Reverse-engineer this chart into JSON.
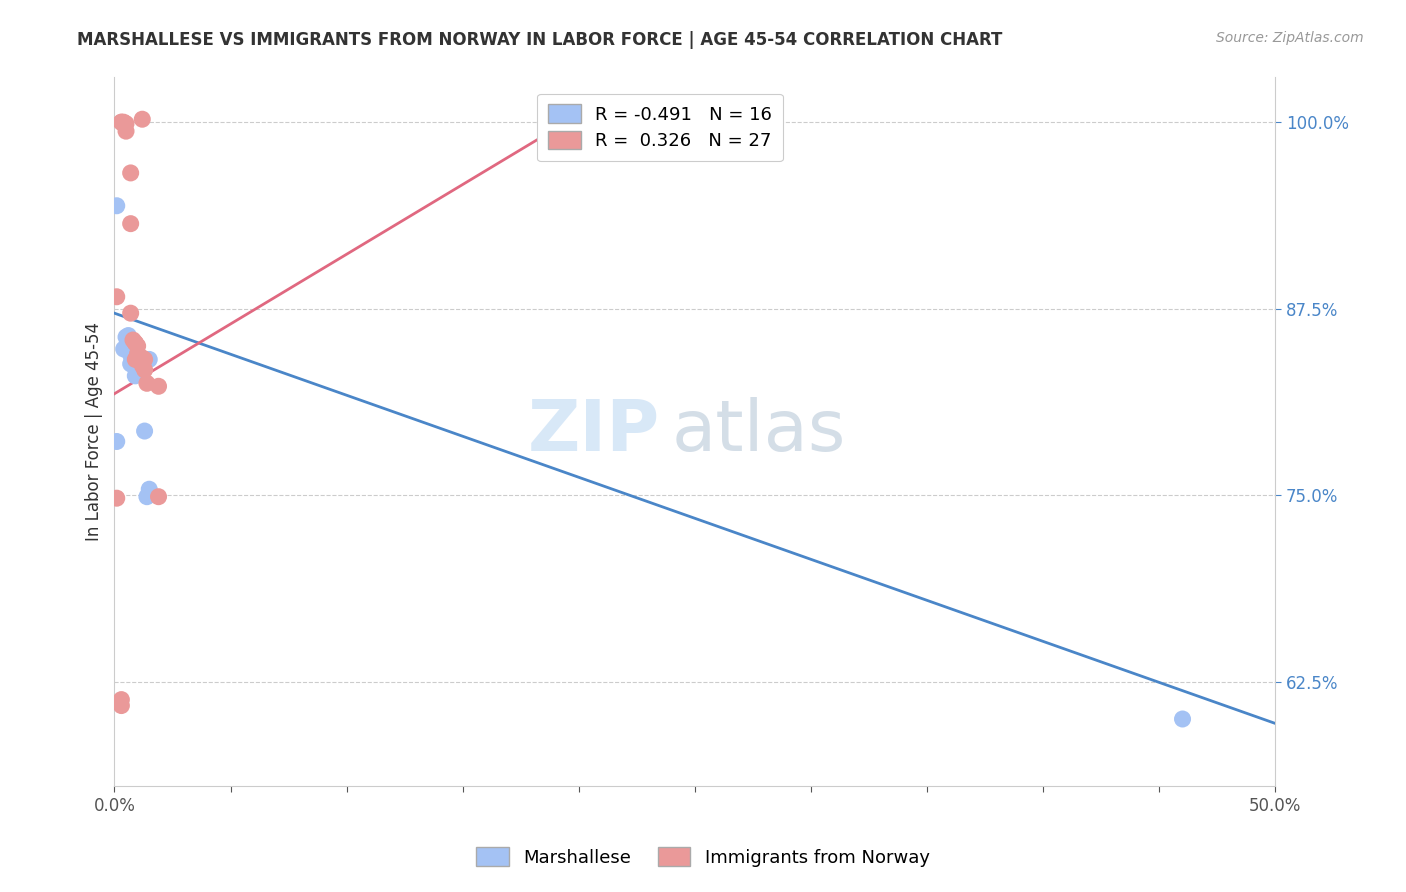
{
  "title": "MARSHALLESE VS IMMIGRANTS FROM NORWAY IN LABOR FORCE | AGE 45-54 CORRELATION CHART",
  "source": "Source: ZipAtlas.com",
  "ylabel": "In Labor Force | Age 45-54",
  "xlim": [
    0.0,
    0.5
  ],
  "ylim": [
    0.555,
    1.03
  ],
  "xtick_positions": [
    0.0,
    0.05,
    0.1,
    0.15,
    0.2,
    0.25,
    0.3,
    0.35,
    0.4,
    0.45,
    0.5
  ],
  "xticklabels": [
    "0.0%",
    "",
    "",
    "",
    "",
    "",
    "",
    "",
    "",
    "",
    "50.0%"
  ],
  "ytick_positions": [
    0.625,
    0.75,
    0.875,
    1.0
  ],
  "ytick_labels": [
    "62.5%",
    "75.0%",
    "87.5%",
    "100.0%"
  ],
  "blue_color": "#a4c2f4",
  "pink_color": "#ea9999",
  "blue_line_color": "#4a86c8",
  "pink_line_color": "#e06880",
  "R_blue": -0.491,
  "N_blue": 16,
  "R_pink": 0.326,
  "N_pink": 27,
  "legend_label_blue": "Marshallese",
  "legend_label_pink": "Immigrants from Norway",
  "watermark_zip": "ZIP",
  "watermark_atlas": "atlas",
  "blue_line": [
    [
      0.0,
      0.872
    ],
    [
      0.5,
      0.597
    ]
  ],
  "pink_line": [
    [
      0.0,
      0.818
    ],
    [
      0.2,
      1.005
    ]
  ],
  "blue_points": [
    [
      0.001,
      0.944
    ],
    [
      0.004,
      0.848
    ],
    [
      0.005,
      0.856
    ],
    [
      0.006,
      0.857
    ],
    [
      0.006,
      0.848
    ],
    [
      0.007,
      0.838
    ],
    [
      0.007,
      0.844
    ],
    [
      0.009,
      0.835
    ],
    [
      0.009,
      0.83
    ],
    [
      0.01,
      0.845
    ],
    [
      0.013,
      0.793
    ],
    [
      0.014,
      0.749
    ],
    [
      0.015,
      0.754
    ],
    [
      0.015,
      0.841
    ],
    [
      0.001,
      0.786
    ],
    [
      0.46,
      0.6
    ]
  ],
  "pink_points": [
    [
      0.003,
      1.0
    ],
    [
      0.003,
      1.0
    ],
    [
      0.004,
      1.0
    ],
    [
      0.004,
      0.999
    ],
    [
      0.005,
      0.999
    ],
    [
      0.012,
      1.002
    ],
    [
      0.007,
      0.966
    ],
    [
      0.007,
      0.932
    ],
    [
      0.007,
      0.872
    ],
    [
      0.008,
      0.854
    ],
    [
      0.009,
      0.852
    ],
    [
      0.009,
      0.852
    ],
    [
      0.01,
      0.85
    ],
    [
      0.01,
      0.845
    ],
    [
      0.012,
      0.842
    ],
    [
      0.012,
      0.837
    ],
    [
      0.013,
      0.841
    ],
    [
      0.013,
      0.834
    ],
    [
      0.014,
      0.825
    ],
    [
      0.009,
      0.841
    ],
    [
      0.019,
      0.823
    ],
    [
      0.001,
      0.883
    ],
    [
      0.001,
      0.748
    ],
    [
      0.019,
      0.749
    ],
    [
      0.003,
      0.613
    ],
    [
      0.003,
      0.609
    ],
    [
      0.005,
      0.994
    ]
  ]
}
